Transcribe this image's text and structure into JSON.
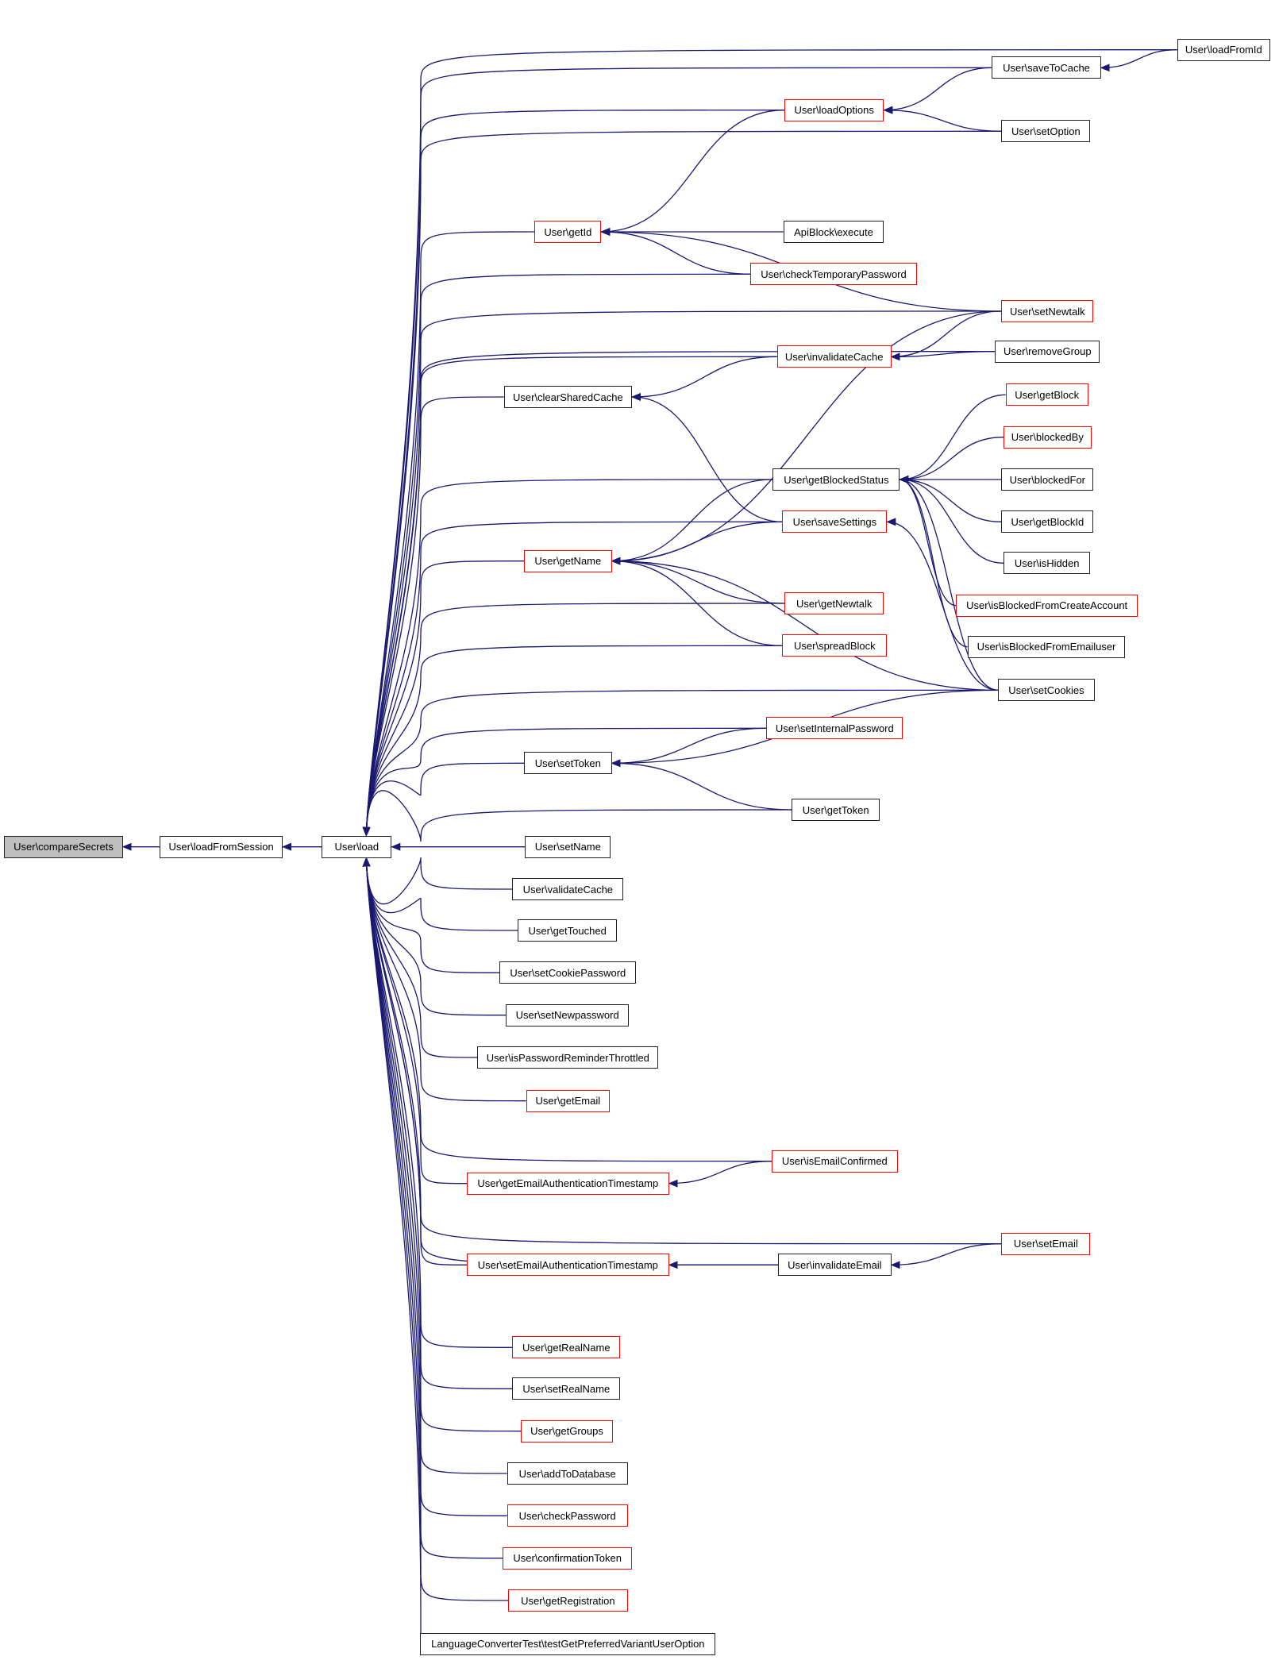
{
  "colors": {
    "edge": "#191970",
    "incomplete_border": "#ff0000",
    "normal_border": "#222222",
    "root_fill": "#bfbfbf"
  },
  "nodes": [
    {
      "id": "compareSecrets",
      "label": "User\\compareSecrets",
      "style": "root"
    },
    {
      "id": "loadFromSession",
      "label": "User\\loadFromSession",
      "style": "normal"
    },
    {
      "id": "load",
      "label": "User\\load",
      "style": "normal"
    },
    {
      "id": "loadFromId",
      "label": "User\\loadFromId",
      "style": "normal"
    },
    {
      "id": "saveToCache",
      "label": "User\\saveToCache",
      "style": "normal"
    },
    {
      "id": "loadOptions",
      "label": "User\\loadOptions",
      "style": "red"
    },
    {
      "id": "setOption",
      "label": "User\\setOption",
      "style": "normal"
    },
    {
      "id": "getId",
      "label": "User\\getId",
      "style": "red"
    },
    {
      "id": "apiExecute",
      "label": "ApiBlock\\execute",
      "style": "normal"
    },
    {
      "id": "checkTemporaryPassword",
      "label": "User\\checkTemporaryPassword",
      "style": "red"
    },
    {
      "id": "setNewtalk",
      "label": "User\\setNewtalk",
      "style": "red"
    },
    {
      "id": "invalidateCache",
      "label": "User\\invalidateCache",
      "style": "red"
    },
    {
      "id": "removeGroup",
      "label": "User\\removeGroup",
      "style": "normal"
    },
    {
      "id": "clearSharedCache",
      "label": "User\\clearSharedCache",
      "style": "normal"
    },
    {
      "id": "getBlock",
      "label": "User\\getBlock",
      "style": "red"
    },
    {
      "id": "blockedBy",
      "label": "User\\blockedBy",
      "style": "red"
    },
    {
      "id": "getBlockedStatus",
      "label": "User\\getBlockedStatus",
      "style": "normal"
    },
    {
      "id": "blockedFor",
      "label": "User\\blockedFor",
      "style": "normal"
    },
    {
      "id": "getBlockId",
      "label": "User\\getBlockId",
      "style": "normal"
    },
    {
      "id": "saveSettings",
      "label": "User\\saveSettings",
      "style": "red"
    },
    {
      "id": "isHidden",
      "label": "User\\isHidden",
      "style": "normal"
    },
    {
      "id": "getName",
      "label": "User\\getName",
      "style": "red"
    },
    {
      "id": "isBlockedFromCreateAccount",
      "label": "User\\isBlockedFromCreateAccount",
      "style": "red"
    },
    {
      "id": "getNewtalk",
      "label": "User\\getNewtalk",
      "style": "red"
    },
    {
      "id": "isBlockedFromEmailuser",
      "label": "User\\isBlockedFromEmailuser",
      "style": "normal"
    },
    {
      "id": "spreadBlock",
      "label": "User\\spreadBlock",
      "style": "red"
    },
    {
      "id": "setCookies",
      "label": "User\\setCookies",
      "style": "normal"
    },
    {
      "id": "setInternalPassword",
      "label": "User\\setInternalPassword",
      "style": "red"
    },
    {
      "id": "setToken",
      "label": "User\\setToken",
      "style": "normal"
    },
    {
      "id": "getToken",
      "label": "User\\getToken",
      "style": "normal"
    },
    {
      "id": "setName",
      "label": "User\\setName",
      "style": "normal"
    },
    {
      "id": "validateCache",
      "label": "User\\validateCache",
      "style": "normal"
    },
    {
      "id": "getTouched",
      "label": "User\\getTouched",
      "style": "normal"
    },
    {
      "id": "setCookiePassword",
      "label": "User\\setCookiePassword",
      "style": "normal"
    },
    {
      "id": "setNewpassword",
      "label": "User\\setNewpassword",
      "style": "normal"
    },
    {
      "id": "isPasswordReminderThrottled",
      "label": "User\\isPasswordReminderThrottled",
      "style": "normal"
    },
    {
      "id": "getEmail",
      "label": "User\\getEmail",
      "style": "red"
    },
    {
      "id": "isEmailConfirmed",
      "label": "User\\isEmailConfirmed",
      "style": "red"
    },
    {
      "id": "getEmailAuthenticationTimestamp",
      "label": "User\\getEmailAuthenticationTimestamp",
      "style": "red"
    },
    {
      "id": "setEmail",
      "label": "User\\setEmail",
      "style": "red"
    },
    {
      "id": "setEmailAuthenticationTimestamp",
      "label": "User\\setEmailAuthenticationTimestamp",
      "style": "red"
    },
    {
      "id": "invalidateEmail",
      "label": "User\\invalidateEmail",
      "style": "normal"
    },
    {
      "id": "getRealName",
      "label": "User\\getRealName",
      "style": "red"
    },
    {
      "id": "setRealName",
      "label": "User\\setRealName",
      "style": "normal"
    },
    {
      "id": "getGroups",
      "label": "User\\getGroups",
      "style": "red"
    },
    {
      "id": "addToDatabase",
      "label": "User\\addToDatabase",
      "style": "normal"
    },
    {
      "id": "checkPassword",
      "label": "User\\checkPassword",
      "style": "red"
    },
    {
      "id": "confirmationToken",
      "label": "User\\confirmationToken",
      "style": "red"
    },
    {
      "id": "getRegistration",
      "label": "User\\getRegistration",
      "style": "red"
    },
    {
      "id": "langTest",
      "label": "LanguageConverterTest\\testGetPreferredVariantUserOption",
      "style": "normal"
    }
  ],
  "edges": [
    [
      "compareSecrets",
      "loadFromSession"
    ],
    [
      "loadFromSession",
      "load"
    ],
    [
      "load",
      "loadFromId"
    ],
    [
      "load",
      "saveToCache"
    ],
    [
      "load",
      "loadOptions"
    ],
    [
      "load",
      "setOption"
    ],
    [
      "load",
      "getId"
    ],
    [
      "load",
      "checkTemporaryPassword"
    ],
    [
      "load",
      "setNewtalk"
    ],
    [
      "load",
      "invalidateCache"
    ],
    [
      "load",
      "clearSharedCache"
    ],
    [
      "load",
      "removeGroup"
    ],
    [
      "load",
      "getBlockedStatus"
    ],
    [
      "load",
      "saveSettings"
    ],
    [
      "load",
      "getName"
    ],
    [
      "load",
      "getNewtalk"
    ],
    [
      "load",
      "spreadBlock"
    ],
    [
      "load",
      "setCookies"
    ],
    [
      "load",
      "setInternalPassword"
    ],
    [
      "load",
      "setToken"
    ],
    [
      "load",
      "getToken"
    ],
    [
      "load",
      "setName"
    ],
    [
      "load",
      "validateCache"
    ],
    [
      "load",
      "getTouched"
    ],
    [
      "load",
      "setCookiePassword"
    ],
    [
      "load",
      "setNewpassword"
    ],
    [
      "load",
      "isPasswordReminderThrottled"
    ],
    [
      "load",
      "getEmail"
    ],
    [
      "load",
      "isEmailConfirmed"
    ],
    [
      "load",
      "getEmailAuthenticationTimestamp"
    ],
    [
      "load",
      "setEmail"
    ],
    [
      "load",
      "setEmailAuthenticationTimestamp"
    ],
    [
      "load",
      "invalidateEmail"
    ],
    [
      "load",
      "getRealName"
    ],
    [
      "load",
      "setRealName"
    ],
    [
      "load",
      "getGroups"
    ],
    [
      "load",
      "addToDatabase"
    ],
    [
      "load",
      "checkPassword"
    ],
    [
      "load",
      "confirmationToken"
    ],
    [
      "load",
      "getRegistration"
    ],
    [
      "load",
      "langTest"
    ],
    [
      "saveToCache",
      "loadFromId"
    ],
    [
      "loadOptions",
      "saveToCache"
    ],
    [
      "loadOptions",
      "setOption"
    ],
    [
      "getId",
      "loadOptions"
    ],
    [
      "getId",
      "setNewtalk"
    ],
    [
      "getId",
      "apiExecute"
    ],
    [
      "getId",
      "checkTemporaryPassword"
    ],
    [
      "invalidateCache",
      "setNewtalk"
    ],
    [
      "invalidateCache",
      "removeGroup"
    ],
    [
      "clearSharedCache",
      "invalidateCache"
    ],
    [
      "clearSharedCache",
      "saveSettings"
    ],
    [
      "getBlockedStatus",
      "getBlock"
    ],
    [
      "getBlockedStatus",
      "blockedBy"
    ],
    [
      "getBlockedStatus",
      "blockedFor"
    ],
    [
      "getBlockedStatus",
      "getBlockId"
    ],
    [
      "getBlockedStatus",
      "isHidden"
    ],
    [
      "getBlockedStatus",
      "isBlockedFromCreateAccount"
    ],
    [
      "getBlockedStatus",
      "isBlockedFromEmailuser"
    ],
    [
      "getBlockedStatus",
      "setCookies"
    ],
    [
      "getName",
      "setNewtalk"
    ],
    [
      "getName",
      "getBlockedStatus"
    ],
    [
      "getName",
      "saveSettings"
    ],
    [
      "getName",
      "getNewtalk"
    ],
    [
      "getName",
      "spreadBlock"
    ],
    [
      "getName",
      "setCookies"
    ],
    [
      "saveSettings",
      "setCookies"
    ],
    [
      "setToken",
      "setInternalPassword"
    ],
    [
      "setToken",
      "setCookies"
    ],
    [
      "setToken",
      "getToken"
    ],
    [
      "getEmailAuthenticationTimestamp",
      "isEmailConfirmed"
    ],
    [
      "setEmailAuthenticationTimestamp",
      "invalidateEmail"
    ],
    [
      "invalidateEmail",
      "setEmail"
    ]
  ]
}
